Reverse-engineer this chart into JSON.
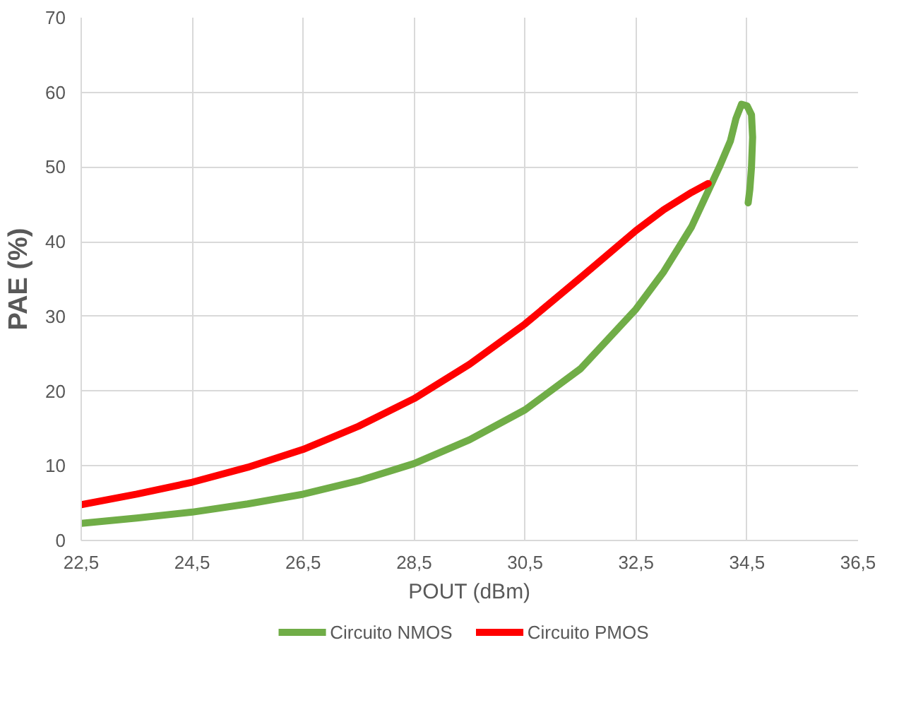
{
  "chart_data": {
    "type": "line",
    "xlabel": "POUT (dBm)",
    "ylabel": "PAE (%)",
    "xlim": [
      22.5,
      36.5
    ],
    "ylim": [
      0,
      70
    ],
    "xticks": [
      {
        "value": 22.5,
        "label": "22,5"
      },
      {
        "value": 24.5,
        "label": "24,5"
      },
      {
        "value": 26.5,
        "label": "26,5"
      },
      {
        "value": 28.5,
        "label": "28,5"
      },
      {
        "value": 30.5,
        "label": "30,5"
      },
      {
        "value": 32.5,
        "label": "32,5"
      },
      {
        "value": 34.5,
        "label": "34,5"
      },
      {
        "value": 36.5,
        "label": "36,5"
      }
    ],
    "yticks": [
      0,
      10,
      20,
      30,
      40,
      50,
      60,
      70
    ],
    "grid": true,
    "legend": "bottom",
    "marker": "none",
    "line_style": "solid",
    "series": [
      {
        "name": "Circuito NMOS",
        "color": "#70ad47",
        "x": [
          22.5,
          23.5,
          24.5,
          25.5,
          26.5,
          27.5,
          28.5,
          29.5,
          30.5,
          31.5,
          32.5,
          33.0,
          33.5,
          34.0,
          34.2,
          34.3,
          34.4,
          34.5,
          34.58,
          34.6,
          34.58,
          34.55,
          34.52
        ],
        "values": [
          2.3,
          3.0,
          3.8,
          4.9,
          6.2,
          8.0,
          10.3,
          13.5,
          17.5,
          23.0,
          31.0,
          36.0,
          42.0,
          50.0,
          53.5,
          56.5,
          58.4,
          58.2,
          57.0,
          54.0,
          50.0,
          47.0,
          45.2
        ]
      },
      {
        "name": "Circuito PMOS",
        "color": "#ff0000",
        "x": [
          22.5,
          23.5,
          24.5,
          25.5,
          26.5,
          27.5,
          28.5,
          29.5,
          30.5,
          31.5,
          32.5,
          33.0,
          33.5,
          33.8
        ],
        "values": [
          4.8,
          6.2,
          7.8,
          9.8,
          12.2,
          15.3,
          19.0,
          23.6,
          29.0,
          35.2,
          41.5,
          44.3,
          46.6,
          47.8
        ]
      }
    ]
  }
}
